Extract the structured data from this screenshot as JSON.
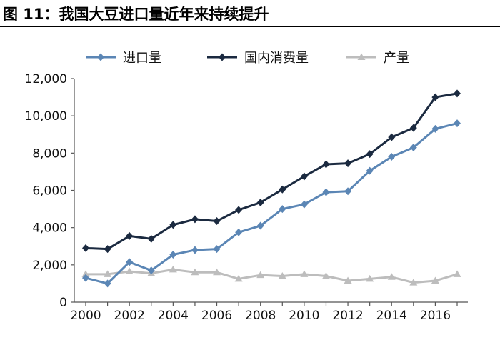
{
  "header": {
    "title": "图 11：我国大豆进口量近年来持续提升"
  },
  "chart_data": {
    "type": "line",
    "title": "图 11：我国大豆进口量近年来持续提升",
    "xlabel": "",
    "ylabel": "",
    "x": [
      2000,
      2001,
      2002,
      2003,
      2004,
      2005,
      2006,
      2007,
      2008,
      2009,
      2010,
      2011,
      2012,
      2013,
      2014,
      2015,
      2016,
      2017
    ],
    "x_ticks": [
      "2000",
      "2002",
      "2004",
      "2006",
      "2008",
      "2010",
      "2012",
      "2014",
      "2016"
    ],
    "x_tick_values": [
      2000,
      2002,
      2004,
      2006,
      2008,
      2010,
      2012,
      2014,
      2016
    ],
    "xlim": [
      2000,
      2017
    ],
    "ylim": [
      0,
      12000
    ],
    "y_ticks": [
      "0",
      "2,000",
      "4,000",
      "6,000",
      "8,000",
      "10,000",
      "12,000"
    ],
    "y_tick_values": [
      0,
      2000,
      4000,
      6000,
      8000,
      10000,
      12000
    ],
    "grid": false,
    "legend_position": "top",
    "series": [
      {
        "name": "进口量",
        "color": "#5b86b5",
        "marker": "diamond",
        "values": [
          1300,
          1000,
          2150,
          1700,
          2550,
          2800,
          2850,
          3750,
          4100,
          5000,
          5250,
          5900,
          5950,
          7050,
          7800,
          8300,
          9300,
          9600
        ]
      },
      {
        "name": "国内消费量",
        "color": "#1b2a40",
        "marker": "diamond",
        "values": [
          2900,
          2850,
          3550,
          3400,
          4150,
          4450,
          4350,
          4950,
          5350,
          6050,
          6750,
          7400,
          7450,
          7950,
          8850,
          9350,
          11000,
          11200
        ]
      },
      {
        "name": "产量",
        "color": "#bdbdbd",
        "marker": "triangle",
        "values": [
          1500,
          1500,
          1650,
          1550,
          1750,
          1600,
          1600,
          1250,
          1450,
          1400,
          1500,
          1400,
          1150,
          1250,
          1350,
          1050,
          1150,
          1500
        ]
      }
    ]
  }
}
